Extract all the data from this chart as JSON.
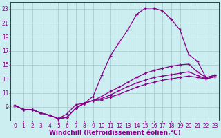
{
  "bg_color": "#cceef0",
  "grid_color": "#a0c8cc",
  "line_color": "#880088",
  "xlabel": "Windchill (Refroidissement éolien,°C)",
  "xlim": [
    -0.5,
    23.5
  ],
  "ylim": [
    7.0,
    24.0
  ],
  "xticks": [
    0,
    1,
    2,
    3,
    4,
    5,
    6,
    7,
    8,
    9,
    10,
    11,
    12,
    13,
    14,
    15,
    16,
    17,
    18,
    19,
    20,
    21,
    22,
    23
  ],
  "yticks": [
    9,
    11,
    13,
    15,
    17,
    19,
    21,
    23
  ],
  "ytick_labels": [
    "9",
    "11",
    "13",
    "15",
    "17",
    "19",
    "21",
    "23"
  ],
  "curves": [
    {
      "x": [
        0,
        1,
        2,
        3,
        4,
        5,
        6,
        7,
        8,
        9,
        10,
        11,
        12,
        13,
        14,
        15,
        16,
        17,
        18,
        19,
        20,
        21,
        22,
        23
      ],
      "y": [
        9.2,
        8.6,
        8.6,
        8.1,
        7.8,
        7.3,
        8.0,
        9.3,
        9.5,
        10.5,
        13.5,
        16.3,
        18.2,
        20.0,
        22.2,
        23.1,
        23.1,
        22.7,
        21.5,
        20.0,
        16.5,
        15.5,
        13.2,
        13.5
      ]
    },
    {
      "x": [
        0,
        1,
        2,
        3,
        4,
        5,
        6,
        7,
        8,
        9,
        10,
        11,
        12,
        13,
        14,
        15,
        16,
        17,
        18,
        19,
        20,
        21,
        22,
        23
      ],
      "y": [
        9.2,
        8.6,
        8.6,
        8.1,
        7.8,
        7.3,
        7.5,
        8.8,
        9.5,
        9.9,
        10.5,
        11.2,
        11.8,
        12.5,
        13.2,
        13.8,
        14.2,
        14.5,
        14.8,
        15.0,
        15.1,
        14.0,
        13.2,
        13.5
      ]
    },
    {
      "x": [
        0,
        1,
        2,
        3,
        4,
        5,
        6,
        7,
        8,
        9,
        10,
        11,
        12,
        13,
        14,
        15,
        16,
        17,
        18,
        19,
        20,
        21,
        22,
        23
      ],
      "y": [
        9.2,
        8.6,
        8.6,
        8.1,
        7.8,
        7.3,
        7.5,
        8.8,
        9.5,
        9.9,
        10.2,
        10.7,
        11.3,
        11.9,
        12.4,
        12.8,
        13.2,
        13.4,
        13.6,
        13.8,
        14.0,
        13.5,
        13.0,
        13.3
      ]
    },
    {
      "x": [
        0,
        1,
        2,
        3,
        4,
        5,
        6,
        7,
        8,
        9,
        10,
        11,
        12,
        13,
        14,
        15,
        16,
        17,
        18,
        19,
        20,
        21,
        22,
        23
      ],
      "y": [
        9.2,
        8.6,
        8.6,
        8.1,
        7.8,
        7.3,
        7.5,
        8.8,
        9.5,
        9.9,
        10.0,
        10.4,
        10.8,
        11.3,
        11.8,
        12.2,
        12.5,
        12.8,
        13.0,
        13.2,
        13.4,
        13.2,
        13.0,
        13.3
      ]
    }
  ],
  "marker": "+",
  "marker_size": 3.5,
  "linewidth": 0.9,
  "tick_fontsize": 5.5,
  "xlabel_fontsize": 6.5
}
